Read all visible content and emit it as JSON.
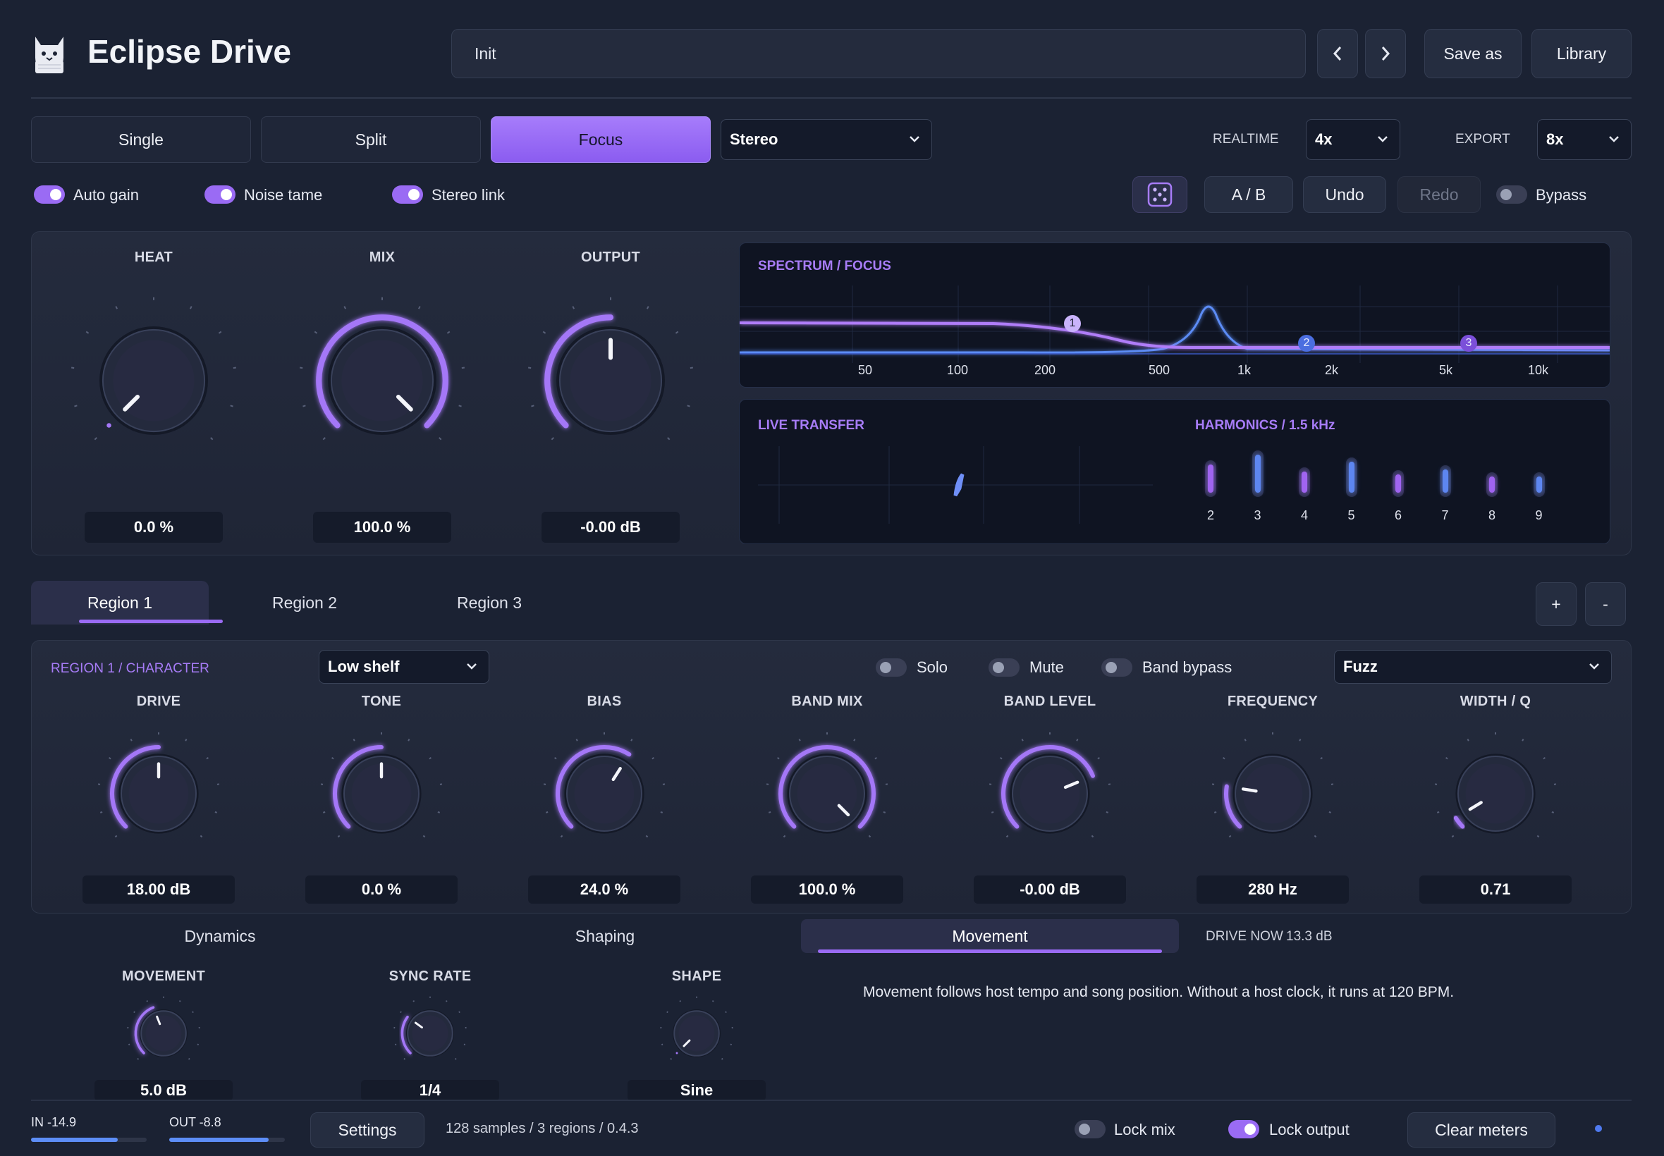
{
  "app": {
    "title": "Eclipse Drive"
  },
  "header": {
    "preset": "Init",
    "save_as": "Save as",
    "library": "Library"
  },
  "modes": {
    "items": [
      "Single",
      "Split",
      "Focus"
    ],
    "active": "Focus",
    "channel": "Stereo"
  },
  "quality": {
    "realtime_label": "REALTIME",
    "realtime_value": "4x",
    "export_label": "EXPORT",
    "export_value": "8x"
  },
  "options": {
    "auto_gain": "Auto gain",
    "noise_tame": "Noise tame",
    "stereo_link": "Stereo link"
  },
  "actions": {
    "ab": "A / B",
    "undo": "Undo",
    "redo": "Redo",
    "bypass": "Bypass"
  },
  "main_knobs": [
    {
      "label": "HEAT",
      "value": "0.0 %",
      "level": 0.0
    },
    {
      "label": "MIX",
      "value": "100.0 %",
      "level": 1.0
    },
    {
      "label": "OUTPUT",
      "value": "-0.00 dB",
      "level": 0.5
    }
  ],
  "spectrum": {
    "title": "SPECTRUM / FOCUS",
    "freq_labels": [
      "50",
      "100",
      "200",
      "500",
      "1k",
      "2k",
      "5k",
      "10k"
    ],
    "nodes": [
      "1",
      "2",
      "3"
    ]
  },
  "transfer": {
    "title": "LIVE TRANSFER"
  },
  "harmonics": {
    "title": "HARMONICS / 1.5 kHz",
    "orders": [
      "2",
      "3",
      "4",
      "5",
      "6",
      "7",
      "8",
      "9"
    ],
    "levels": [
      0.75,
      0.95,
      0.6,
      0.8,
      0.55,
      0.65,
      0.5,
      0.5
    ]
  },
  "regions": {
    "tabs": [
      "Region 1",
      "Region 2",
      "Region 3"
    ],
    "active": "Region 1",
    "add": "+",
    "remove": "-"
  },
  "region": {
    "title": "REGION 1 / CHARACTER",
    "filter_type": "Low shelf",
    "solo": "Solo",
    "mute": "Mute",
    "band_bypass": "Band bypass",
    "algorithm": "Fuzz",
    "knobs": [
      {
        "label": "DRIVE",
        "value": "18.00 dB",
        "level": 0.5
      },
      {
        "label": "TONE",
        "value": "0.0 %",
        "level": 0.5
      },
      {
        "label": "BIAS",
        "value": "24.0 %",
        "level": 0.62
      },
      {
        "label": "BAND MIX",
        "value": "100.0 %",
        "level": 1.0
      },
      {
        "label": "BAND LEVEL",
        "value": "-0.00 dB",
        "level": 0.75
      },
      {
        "label": "FREQUENCY",
        "value": "280 Hz",
        "level": 0.2
      },
      {
        "label": "WIDTH / Q",
        "value": "0.71",
        "level": 0.05
      }
    ]
  },
  "subtabs": {
    "items": [
      "Dynamics",
      "Shaping",
      "Movement"
    ],
    "active": "Movement",
    "drive_now_label": "DRIVE NOW",
    "drive_now_value": "13.3 dB"
  },
  "movement": {
    "knobs": [
      {
        "label": "MOVEMENT",
        "value": "5.0 dB",
        "level": 0.42
      },
      {
        "label": "SYNC RATE",
        "value": "1/4",
        "level": 0.3
      },
      {
        "label": "SHAPE",
        "value": "Sine",
        "level": 0.0
      }
    ],
    "info": "Movement follows host tempo and song position. Without a host clock, it runs at 120 BPM."
  },
  "footer": {
    "in_label": "IN -14.9",
    "in_level": 0.75,
    "out_label": "OUT -8.8",
    "out_level": 0.86,
    "settings": "Settings",
    "status": "128 samples / 3 regions / 0.4.3",
    "lock_mix": "Lock mix",
    "lock_output": "Lock output",
    "clear_meters": "Clear meters"
  },
  "colors": {
    "accent": "#9a6bf4",
    "background": "#1b2233",
    "panel": "#242b3d"
  }
}
